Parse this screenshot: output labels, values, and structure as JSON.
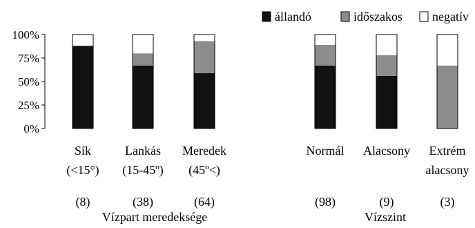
{
  "chart_data": {
    "type": "bar",
    "stacked": true,
    "stack_mode": "percent",
    "ylim": [
      0,
      100
    ],
    "y_ticks": [
      "0%",
      "25%",
      "50%",
      "75%",
      "100%"
    ],
    "legend": {
      "placement": "top-right",
      "entries": [
        {
          "name": "állandó",
          "color": "#111111"
        },
        {
          "name": "időszakos",
          "color": "#8c8c8c"
        },
        {
          "name": "negatív",
          "color": "#ffffff"
        }
      ]
    },
    "groups": [
      {
        "xlabel": "Vízpart meredeksége",
        "categories": [
          {
            "label_lines": [
              "Sík",
              "(<15°)"
            ],
            "n": "(8)",
            "values": [
              88,
              0,
              12
            ]
          },
          {
            "label_lines": [
              "Lankás",
              "(15-45º)"
            ],
            "n": "(38)",
            "values": [
              67,
              13,
              20
            ]
          },
          {
            "label_lines": [
              "Meredek",
              "(45º<)"
            ],
            "n": "(64)",
            "values": [
              59,
              34,
              7
            ]
          }
        ]
      },
      {
        "xlabel": "Vízszint",
        "categories": [
          {
            "label_lines": [
              "Normál"
            ],
            "n": "(98)",
            "values": [
              67,
              22,
              11
            ]
          },
          {
            "label_lines": [
              "Alacsony"
            ],
            "n": "(9)",
            "values": [
              56,
              22,
              22
            ]
          },
          {
            "label_lines": [
              "Extrém",
              "alacsony"
            ],
            "n": "(3)",
            "values": [
              0,
              67,
              33
            ]
          }
        ]
      }
    ]
  }
}
